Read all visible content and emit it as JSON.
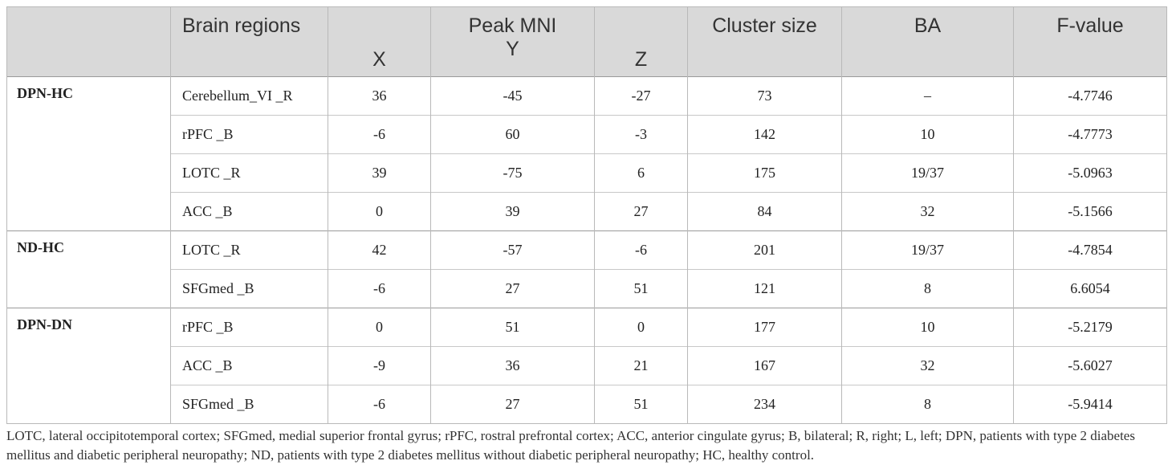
{
  "table": {
    "headers": {
      "group": "",
      "region": "Brain regions",
      "peak_mni": "Peak MNI",
      "x": "X",
      "y": "Y",
      "z": "Z",
      "cluster": "Cluster size",
      "ba": "BA",
      "fvalue": "F-value"
    },
    "groups": [
      {
        "name": "DPN-HC",
        "rows": [
          {
            "region": "Cerebellum_VI _R",
            "x": "36",
            "y": "-45",
            "z": "-27",
            "cluster": "73",
            "ba": "–",
            "f": "-4.7746"
          },
          {
            "region": "rPFC _B",
            "x": "-6",
            "y": "60",
            "z": "-3",
            "cluster": "142",
            "ba": "10",
            "f": "-4.7773"
          },
          {
            "region": "LOTC _R",
            "x": "39",
            "y": "-75",
            "z": "6",
            "cluster": "175",
            "ba": "19/37",
            "f": "-5.0963"
          },
          {
            "region": "ACC _B",
            "x": "0",
            "y": "39",
            "z": "27",
            "cluster": "84",
            "ba": "32",
            "f": "-5.1566"
          }
        ]
      },
      {
        "name": "ND-HC",
        "rows": [
          {
            "region": "LOTC _R",
            "x": "42",
            "y": "-57",
            "z": "-6",
            "cluster": "201",
            "ba": "19/37",
            "f": "-4.7854"
          },
          {
            "region": "SFGmed _B",
            "x": "-6",
            "y": "27",
            "z": "51",
            "cluster": "121",
            "ba": "8",
            "f": "6.6054"
          }
        ]
      },
      {
        "name": "DPN-DN",
        "rows": [
          {
            "region": "rPFC _B",
            "x": "0",
            "y": "51",
            "z": "0",
            "cluster": "177",
            "ba": "10",
            "f": "-5.2179"
          },
          {
            "region": "ACC _B",
            "x": "-9",
            "y": "36",
            "z": "21",
            "cluster": "167",
            "ba": "32",
            "f": "-5.6027"
          },
          {
            "region": "SFGmed _B",
            "x": "-6",
            "y": "27",
            "z": "51",
            "cluster": "234",
            "ba": "8",
            "f": "-5.9414"
          }
        ]
      }
    ]
  },
  "footnote": "LOTC, lateral occipitotemporal cortex; SFGmed, medial superior frontal gyrus; rPFC, rostral prefrontal cortex; ACC, anterior cingulate gyrus; B, bilateral; R, right; L, left; DPN, patients with type 2 diabetes mellitus and diabetic peripheral neuropathy; ND, patients with type 2 diabetes mellitus without diabetic peripheral neuropathy; HC, healthy control."
}
